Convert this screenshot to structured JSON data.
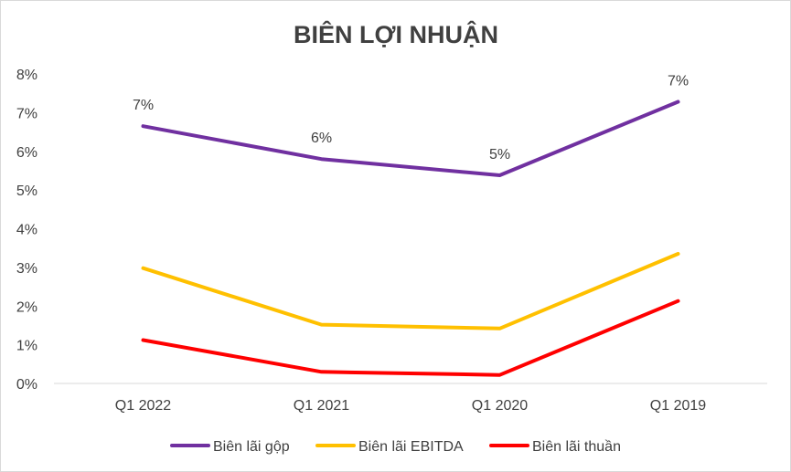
{
  "chart_data": {
    "type": "line",
    "title": "BIÊN LỢI NHUẬN",
    "categories": [
      "Q1 2022",
      "Q1 2021",
      "Q1 2020",
      "Q1 2019"
    ],
    "y_ticks": [
      "0%",
      "1%",
      "2%",
      "3%",
      "4%",
      "5%",
      "6%",
      "7%",
      "8%"
    ],
    "ylim": [
      0,
      8
    ],
    "y_unit": "%",
    "grid": false,
    "legend_position": "bottom",
    "series": [
      {
        "name": "Biên lãi gộp",
        "color": "#7030a0",
        "values": [
          6.65,
          5.8,
          5.38,
          7.28
        ],
        "data_labels": [
          "7%",
          "6%",
          "5%",
          "7%"
        ]
      },
      {
        "name": "Biên lãi EBITDA",
        "color": "#ffc000",
        "values": [
          2.98,
          1.52,
          1.42,
          3.35
        ]
      },
      {
        "name": "Biên lãi thuần",
        "color": "#ff0000",
        "values": [
          1.12,
          0.3,
          0.22,
          2.13
        ]
      }
    ]
  }
}
